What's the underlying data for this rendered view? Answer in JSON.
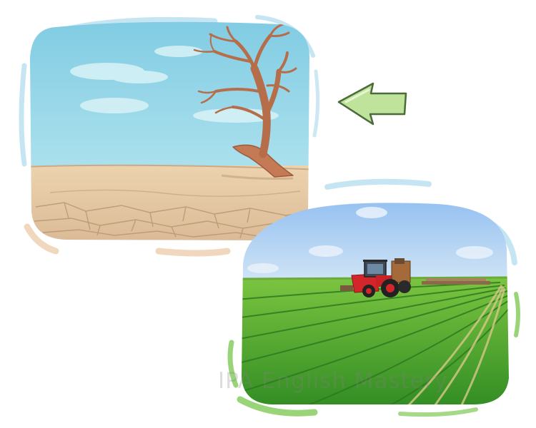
{
  "illustration": {
    "before_scene": "dry-cracked-desert-with-dead-tree",
    "after_scene": "green-irrigated-field-with-tractor",
    "arrow_direction": "left"
  },
  "watermark": {
    "text": "IPA English Mastery"
  },
  "colors": {
    "desert_sky": "#a8e0ee",
    "desert_ground": "#e8cda8",
    "dead_tree": "#c47a55",
    "field_sky": "#a9cdf2",
    "field_green": "#3a9b2a",
    "tractor_red": "#d3262b",
    "arrow_fill": "#bfe39a",
    "brush_blue": "#b8def0",
    "brush_green": "#8fcf6a",
    "brush_tan": "#f2d7bf"
  }
}
